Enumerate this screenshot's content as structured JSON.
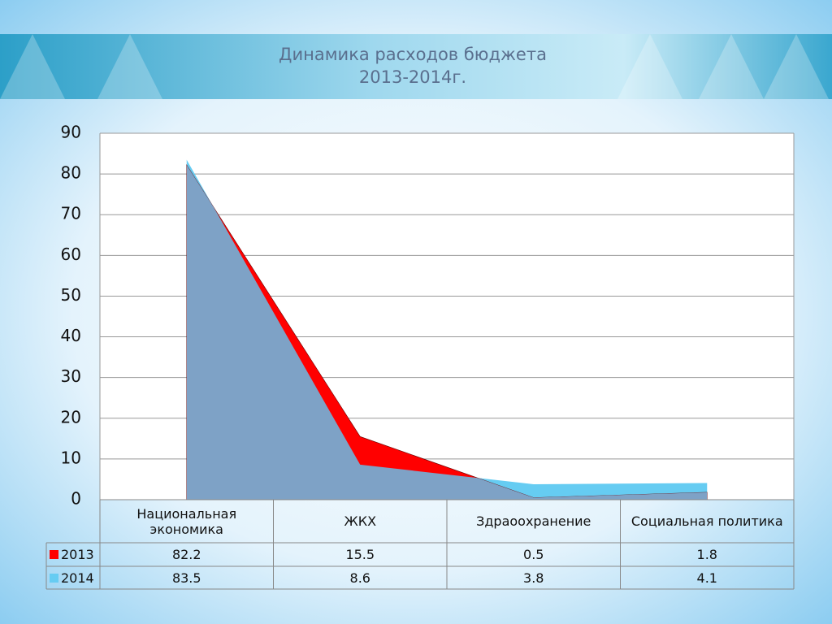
{
  "chart_data": {
    "type": "area",
    "title": "Динамика расходов бюджета",
    "subtitle": "2013-2014г.",
    "categories": [
      "Национальная экономика",
      "ЖКХ",
      "Здраоохранение",
      "Социальная политика"
    ],
    "series": [
      {
        "name": "2013",
        "color": "#ff0000",
        "values": [
          82.2,
          15.5,
          0.5,
          1.8
        ]
      },
      {
        "name": "2014",
        "color": "#66ccf2",
        "values": [
          83.5,
          8.6,
          3.8,
          4.1
        ]
      }
    ],
    "overlap_color": "#7ea2c6",
    "ylim": [
      0,
      90
    ],
    "yticks": [
      0,
      10,
      20,
      30,
      40,
      50,
      60,
      70,
      80,
      90
    ],
    "grid": true
  }
}
